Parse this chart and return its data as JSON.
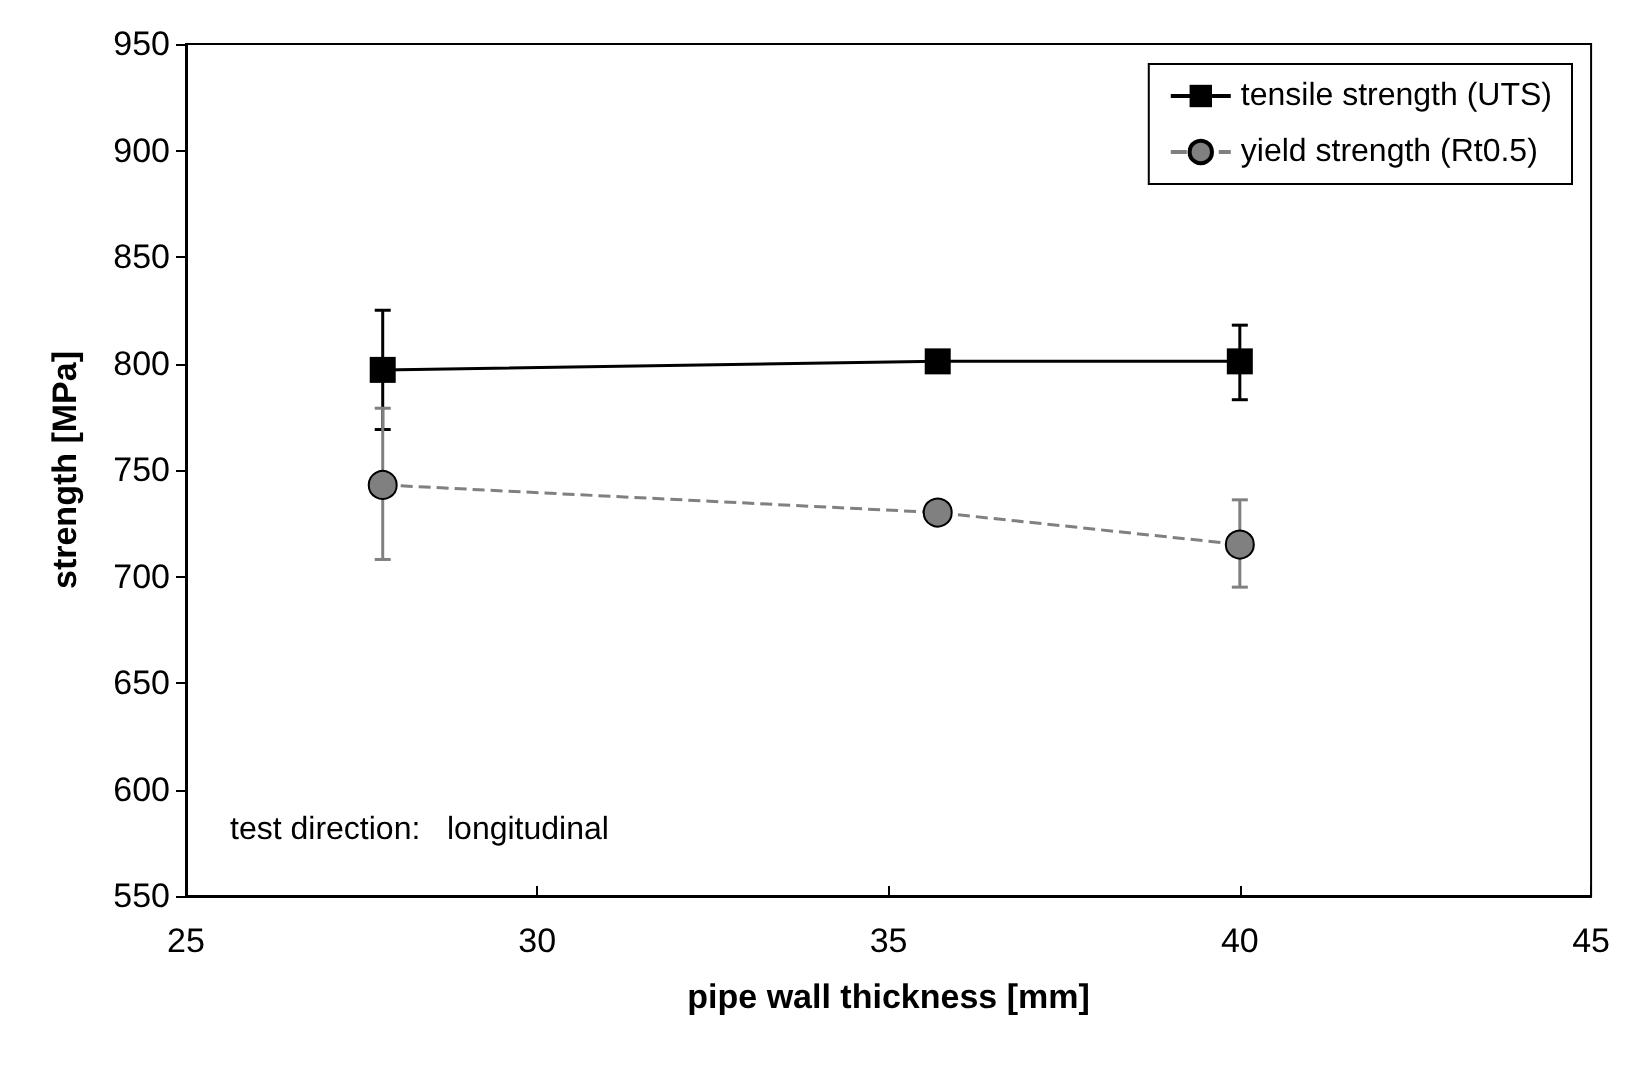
{
  "chart_data": {
    "type": "line",
    "xlabel": "pipe wall thickness [mm]",
    "ylabel": "strength [MPa]",
    "x": [
      27.8,
      35.7,
      40.0
    ],
    "series": [
      {
        "name": "tensile strength (UTS)",
        "color": "#000000",
        "values": [
          797,
          801,
          801
        ],
        "errors": [
          [
            769,
            825
          ],
          null,
          [
            783,
            818
          ]
        ],
        "marker": "square",
        "line_style": "solid"
      },
      {
        "name": "yield strength (Rt0.5)",
        "color": "#808080",
        "values": [
          743,
          730,
          715
        ],
        "errors": [
          [
            708,
            779
          ],
          null,
          [
            695,
            736
          ]
        ],
        "marker": "circle",
        "line_style": "dashed"
      }
    ],
    "xlim": [
      25,
      45
    ],
    "xticks": [
      25,
      30,
      35,
      40,
      45
    ],
    "ylim": [
      550,
      950
    ],
    "yticks": [
      550,
      600,
      650,
      700,
      750,
      800,
      850,
      900,
      950
    ],
    "grid": false,
    "legend": "top right",
    "annotations": [
      "test direction:   longitudinal"
    ]
  }
}
